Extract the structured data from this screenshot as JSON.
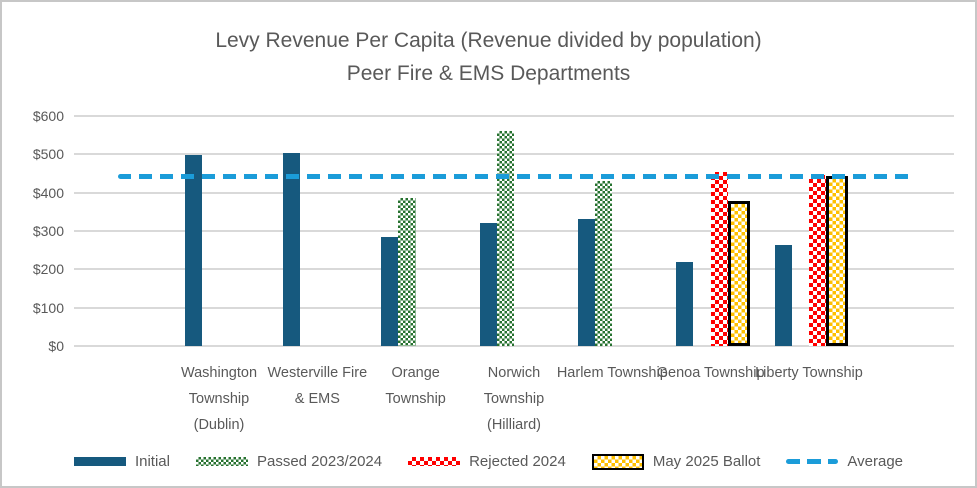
{
  "chart_data": {
    "type": "bar",
    "title_line1": "Levy Revenue Per Capita (Revenue divided by population)",
    "title_line2": "Peer Fire & EMS Departments",
    "categories": [
      "Washington Township (Dublin)",
      "Westerville Fire & EMS",
      "Orange Township",
      "Norwich Township (Hilliard)",
      "Harlem Township",
      "Genoa Township",
      "Liberty Township"
    ],
    "series": [
      {
        "name": "Initial",
        "style": "initial",
        "values": [
          497,
          504,
          285,
          320,
          332,
          220,
          263
        ]
      },
      {
        "name": "Passed 2023/2024",
        "style": "passed",
        "values": [
          null,
          null,
          385,
          560,
          430,
          null,
          null
        ]
      },
      {
        "name": "Rejected 2024",
        "style": "rejected",
        "values": [
          null,
          null,
          null,
          null,
          null,
          453,
          446
        ]
      },
      {
        "name": "May 2025 Ballot",
        "style": "may",
        "values": [
          null,
          null,
          null,
          null,
          null,
          377,
          444
        ]
      }
    ],
    "average_line": {
      "name": "Average",
      "style": "average",
      "value": 442
    },
    "y_ticks": [
      "$0",
      "$100",
      "$200",
      "$300",
      "$400",
      "$500",
      "$600"
    ],
    "ylim": [
      0,
      600
    ],
    "grid": true,
    "legend_position": "bottom",
    "colors": {
      "initial": "#16597E",
      "passed": "#26722F",
      "rejected": "#FF0000",
      "may_fill": "#FFC000",
      "may_border": "#000000",
      "average": "#1B9CD9",
      "text": "#595959",
      "gridline": "#D9D9D9"
    }
  }
}
